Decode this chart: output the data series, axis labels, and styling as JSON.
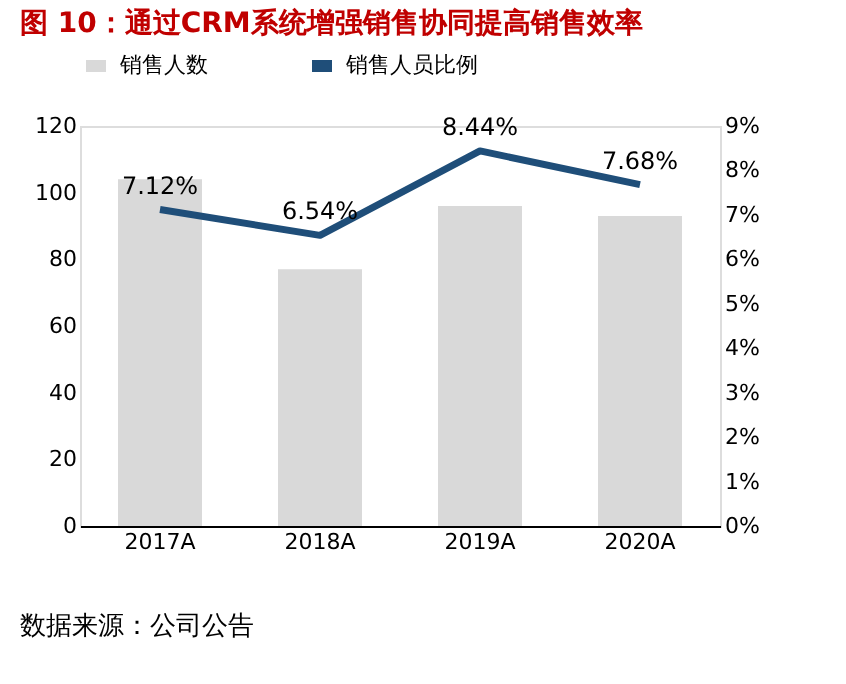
{
  "chart_data": {
    "type": "bar",
    "title": "图 10：通过CRM系统增强销售协同提高销售效率",
    "categories": [
      "2017A",
      "2018A",
      "2019A",
      "2020A"
    ],
    "series": [
      {
        "name": "销售人数",
        "color": "#d9d9d9",
        "values": [
          104,
          77,
          96,
          93
        ]
      },
      {
        "name": "销售人员比例",
        "type": "line",
        "axis": "y2",
        "color": "#1f4e79",
        "values": [
          7.12,
          6.54,
          8.44,
          7.68
        ],
        "value_labels": [
          "7.12%",
          "6.54%",
          "8.44%",
          "7.68%"
        ]
      }
    ],
    "ylim": [
      0,
      120
    ],
    "yticks": [
      0,
      20,
      40,
      60,
      80,
      100,
      120
    ],
    "y2lim": [
      0,
      9
    ],
    "y2ticks": [
      {
        "value": 0,
        "label": "0%"
      },
      {
        "value": 1,
        "label": "1%"
      },
      {
        "value": 2,
        "label": "2%"
      },
      {
        "value": 3,
        "label": "3%"
      },
      {
        "value": 4,
        "label": "4%"
      },
      {
        "value": 5,
        "label": "5%"
      },
      {
        "value": 6,
        "label": "6%"
      },
      {
        "value": 7,
        "label": "7%"
      },
      {
        "value": 8,
        "label": "8%"
      },
      {
        "value": 9,
        "label": "9%"
      }
    ],
    "grid": false,
    "legend": "top",
    "marker": "none",
    "line_style": "solid",
    "annotations": [
      "数据来源：公司公告"
    ]
  }
}
